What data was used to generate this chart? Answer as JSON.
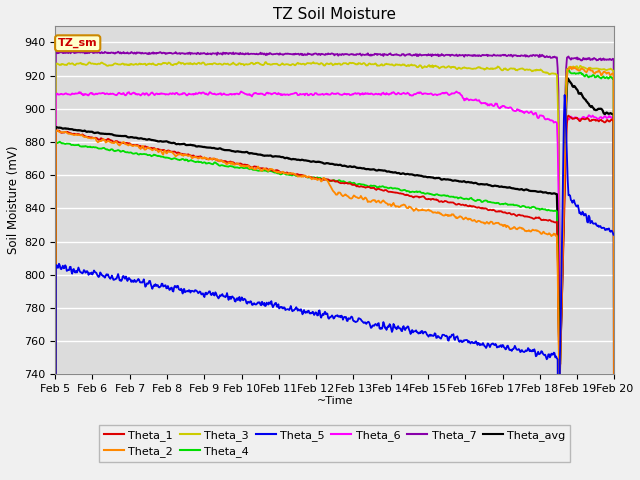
{
  "title": "TZ Soil Moisture",
  "xlabel": "~Time",
  "ylabel": "Soil Moisture (mV)",
  "ylim": [
    740,
    950
  ],
  "yticks": [
    740,
    760,
    780,
    800,
    820,
    840,
    860,
    880,
    900,
    920,
    940
  ],
  "date_labels": [
    "Feb 5",
    "Feb 6",
    "Feb 7",
    "Feb 8",
    "Feb 9",
    "Feb 10",
    "Feb 11",
    "Feb 12",
    "Feb 13",
    "Feb 14",
    "Feb 15",
    "Feb 16",
    "Feb 17",
    "Feb 18",
    "Feb 19",
    "Feb 20"
  ],
  "colors": {
    "Theta_1": "#dd0000",
    "Theta_2": "#ff8800",
    "Theta_3": "#cccc00",
    "Theta_4": "#00dd00",
    "Theta_5": "#0000ee",
    "Theta_6": "#ff00ff",
    "Theta_7": "#8800aa",
    "Theta_avg": "#000000"
  },
  "bg_color": "#dcdcdc",
  "fig_bg": "#f0f0f0",
  "grid_color": "#ffffff"
}
